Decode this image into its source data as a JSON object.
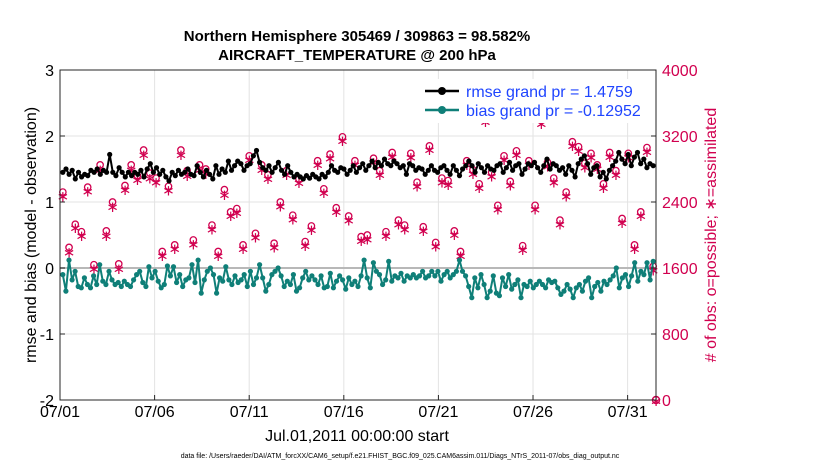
{
  "colors": {
    "rmse": "#000000",
    "bias": "#0f7f78",
    "obs": "#d1004f",
    "zero_line": "#b8b8b8",
    "legend_text": "#1f45ff"
  },
  "chart_data": {
    "type": "line",
    "title_line1": "Northern Hemisphere 305469 / 309863 = 98.582%",
    "title_line2": "AIRCRAFT_TEMPERATURE @ 200 hPa",
    "ylabel_left": "rmse and bias (model - observation)",
    "ylabel_right": "# of obs: o=possible; ∗=assimilated",
    "xlabel": "Jul.01,2011 00:00:00 start",
    "footnote": "data file: /Users/raeder/DAI/ATM_forcXX/CAM6_setup/f.e21.FHIST_BGC.f09_025.CAM6assim.011/Diags_NTrS_2011-07/obs_diag_output.nc",
    "x_range": [
      0,
      31.5
    ],
    "x_ticks": [
      0,
      5,
      10,
      15,
      20,
      25,
      30
    ],
    "x_tick_labels": [
      "07/01",
      "07/06",
      "07/11",
      "07/16",
      "07/21",
      "07/26",
      "07/31"
    ],
    "ylim_left": [
      -2,
      3
    ],
    "left_ticks": [
      "-2",
      "-1",
      "0",
      "1",
      "2",
      "3"
    ],
    "ylim_right": [
      0,
      4000
    ],
    "right_ticks": [
      "0",
      "800",
      "1600",
      "2400",
      "3200",
      "4000"
    ],
    "grid": true,
    "legend_position": "top-right",
    "series": [
      {
        "name": "rmse grand pr = 1.4759",
        "axis": "left",
        "marker": "filled-circle",
        "values": [
          1.45,
          1.5,
          1.42,
          1.48,
          1.35,
          1.45,
          1.38,
          1.42,
          1.4,
          1.48,
          1.45,
          1.5,
          1.42,
          1.48,
          1.45,
          1.72,
          1.45,
          1.4,
          1.52,
          1.45,
          1.38,
          1.45,
          1.4,
          1.45,
          1.42,
          1.48,
          1.38,
          1.5,
          1.58,
          1.45,
          1.52,
          1.42,
          1.48,
          1.38,
          1.32,
          1.45,
          1.4,
          1.48,
          1.42,
          1.45,
          1.5,
          1.42,
          1.4,
          1.55,
          1.45,
          1.38,
          1.48,
          1.42,
          1.35,
          1.55,
          1.42,
          1.5,
          1.45,
          1.62,
          1.48,
          1.55,
          1.62,
          1.58,
          1.48,
          1.55,
          1.58,
          1.7,
          1.78,
          1.6,
          1.52,
          1.48,
          1.55,
          1.45,
          1.52,
          1.6,
          1.48,
          1.42,
          1.55,
          1.45,
          1.38,
          1.42,
          1.38,
          1.35,
          1.4,
          1.36,
          1.42,
          1.38,
          1.35,
          1.42,
          1.38,
          1.45,
          1.55,
          1.48,
          1.45,
          1.52,
          1.5,
          1.42,
          1.48,
          1.55,
          1.45,
          1.52,
          1.58,
          1.48,
          1.55,
          1.62,
          1.52,
          1.6,
          1.55,
          1.65,
          1.58,
          1.55,
          1.62,
          1.58,
          1.52,
          1.55,
          1.42,
          1.58,
          1.55,
          1.48,
          1.52,
          1.5,
          1.42,
          1.48,
          1.55,
          1.48,
          1.45,
          1.52,
          1.55,
          1.48,
          1.42,
          1.55,
          1.48,
          1.4,
          1.5,
          1.55,
          1.62,
          1.55,
          1.45,
          1.58,
          1.52,
          1.45,
          1.55,
          1.5,
          1.48,
          1.55,
          1.58,
          1.45,
          1.52,
          1.6,
          1.48,
          1.55,
          1.58,
          1.42,
          1.5,
          1.58,
          1.55,
          1.6,
          1.52,
          1.45,
          1.55,
          1.65,
          1.5,
          1.58,
          1.55,
          1.48,
          1.52,
          1.42,
          1.55,
          1.48,
          1.38,
          1.58,
          1.65,
          1.7,
          1.58,
          1.42,
          1.52,
          1.55,
          1.38,
          1.45,
          1.35,
          1.48,
          1.55,
          1.62,
          1.75,
          1.65,
          1.58,
          1.72,
          1.55,
          1.68,
          1.75,
          1.58,
          1.65,
          1.52,
          1.58,
          1.55
        ]
      },
      {
        "name": "bias grand pr = -0.12952",
        "axis": "left",
        "marker": "filled-circle",
        "values": [
          -0.1,
          -0.35,
          0.12,
          -0.18,
          -0.05,
          -0.28,
          -0.3,
          -0.15,
          -0.25,
          -0.3,
          -0.12,
          -0.25,
          0.05,
          -0.2,
          -0.25,
          -0.05,
          -0.18,
          -0.25,
          -0.22,
          -0.28,
          -0.2,
          -0.25,
          -0.28,
          -0.18,
          -0.1,
          -0.05,
          -0.22,
          -0.28,
          0.02,
          -0.15,
          -0.05,
          -0.2,
          -0.3,
          -0.25,
          0.03,
          -0.12,
          0.02,
          -0.22,
          -0.1,
          -0.28,
          -0.18,
          -0.15,
          0.05,
          -0.22,
          0.12,
          -0.38,
          -0.18,
          -0.05,
          0.0,
          -0.1,
          -0.38,
          -0.15,
          -0.2,
          0.02,
          -0.18,
          -0.25,
          -0.12,
          -0.22,
          -0.18,
          -0.1,
          -0.28,
          -0.05,
          -0.25,
          -0.15,
          0.05,
          -0.15,
          -0.35,
          -0.25,
          -0.1,
          -0.05,
          0.0,
          -0.12,
          -0.28,
          -0.2,
          -0.25,
          -0.1,
          -0.35,
          -0.3,
          -0.15,
          -0.05,
          -0.18,
          -0.12,
          -0.18,
          -0.25,
          -0.12,
          -0.3,
          -0.28,
          -0.08,
          -0.3,
          -0.2,
          -0.12,
          -0.18,
          -0.32,
          -0.15,
          -0.25,
          -0.2,
          -0.28,
          -0.12,
          0.12,
          -0.15,
          -0.3,
          0.08,
          -0.05,
          -0.1,
          -0.25,
          -0.18,
          0.1,
          -0.2,
          -0.12,
          -0.15,
          -0.08,
          -0.2,
          -0.12,
          -0.15,
          -0.1,
          -0.15,
          -0.12,
          -0.05,
          -0.15,
          -0.12,
          -0.05,
          -0.12,
          -0.05,
          -0.2,
          -0.1,
          -0.05,
          -0.15,
          -0.1,
          -0.05,
          0.12,
          -0.05,
          -0.12,
          -0.28,
          -0.45,
          -0.15,
          -0.3,
          -0.1,
          -0.25,
          -0.45,
          -0.35,
          -0.12,
          -0.38,
          -0.42,
          -0.15,
          -0.28,
          -0.1,
          -0.32,
          -0.25,
          -0.18,
          -0.45,
          -0.25,
          -0.28,
          -0.2,
          -0.3,
          -0.25,
          -0.2,
          -0.25,
          -0.3,
          -0.18,
          -0.22,
          -0.2,
          -0.3,
          -0.4,
          -0.35,
          -0.25,
          -0.32,
          -0.45,
          -0.3,
          -0.25,
          -0.35,
          -0.2,
          -0.15,
          -0.45,
          -0.28,
          -0.22,
          -0.35,
          -0.2,
          -0.25,
          -0.18,
          -0.12,
          0.0,
          -0.3,
          -0.15,
          -0.1,
          -0.28,
          -0.12,
          0.08,
          -0.2,
          -0.05,
          -0.1,
          0.08,
          -0.18,
          0.1
        ]
      },
      {
        "name": "possible",
        "axis": "right",
        "marker": "open-circle",
        "values": [
          2520,
          1850,
          2130,
          2040,
          2580,
          1640,
          2850,
          2050,
          2400,
          1650,
          2600,
          2850,
          2720,
          3030,
          2750,
          2690,
          1800,
          2590,
          1880,
          3030,
          2780,
          1940,
          2850,
          2800,
          2120,
          1800,
          2550,
          2280,
          2320,
          1880,
          2960,
          2020,
          2850,
          2730,
          1900,
          2400,
          2780,
          2240,
          2680,
          1920,
          2110,
          2900,
          2560,
          2980,
          2330,
          3190,
          2230,
          2900,
          1980,
          2000,
          2930,
          2780,
          2040,
          3000,
          2180,
          2120,
          2990,
          2640,
          2100,
          3080,
          1910,
          2690,
          2660,
          2050,
          1800,
          2900,
          2790,
          2620,
          3420,
          2760,
          2360,
          2960,
          2650,
          3020,
          1870,
          2900,
          2360,
          3400,
          2880,
          2690,
          2180,
          2520,
          3130,
          3070,
          2870,
          2990,
          2850,
          2620,
          3000,
          2780,
          2200,
          2990,
          1880,
          2280,
          3060,
          1620
        ]
      },
      {
        "name": "assimilated",
        "axis": "right",
        "marker": "asterisk",
        "values": [
          2480,
          1800,
          2100,
          2000,
          2540,
          1600,
          2800,
          2000,
          2350,
          1600,
          2560,
          2800,
          2680,
          2980,
          2700,
          2650,
          1760,
          2550,
          1840,
          2980,
          2730,
          1900,
          2800,
          2750,
          2080,
          1760,
          2500,
          2240,
          2280,
          1840,
          2920,
          1980,
          2800,
          2690,
          1860,
          2360,
          2740,
          2200,
          2640,
          1880,
          2070,
          2860,
          2520,
          2940,
          2290,
          3150,
          2190,
          2860,
          1940,
          1960,
          2890,
          2740,
          2000,
          2960,
          2140,
          2080,
          2950,
          2600,
          2060,
          3040,
          1870,
          2650,
          2620,
          2010,
          1760,
          2860,
          2750,
          2580,
          3380,
          2720,
          2320,
          2920,
          2610,
          2980,
          1830,
          2860,
          2320,
          3360,
          2840,
          2650,
          2140,
          2480,
          3090,
          3030,
          2830,
          2950,
          2810,
          2580,
          2960,
          2740,
          2160,
          2950,
          1840,
          2240,
          3020,
          1580
        ]
      }
    ]
  }
}
